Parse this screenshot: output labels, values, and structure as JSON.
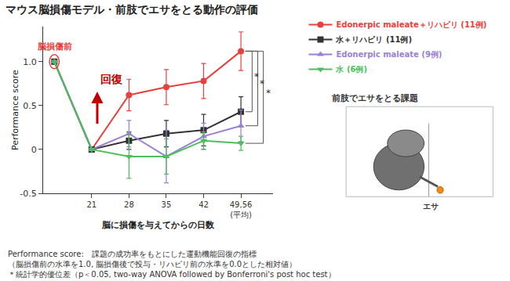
{
  "chart_data": {
    "type": "line",
    "title": "マウス脳損傷モデル・前肢でエサをとる動作の評価",
    "y_label": "Performance score",
    "x_label": "脳に損傷を与えてからの日数",
    "categories": [
      null,
      "21",
      "28",
      "35",
      "42",
      "49,56\n(平均)"
    ],
    "ylim": [
      -0.5,
      1.4
    ],
    "yticks": [
      -0.5,
      0,
      0.5,
      {
        "value": 1,
        "label": "1.0"
      }
    ],
    "grid": false,
    "legend": "right",
    "error_bars": true,
    "series": [
      {
        "name": "Edonerpic maleate＋リハビリ (11例)",
        "color": "#e8413c",
        "marker": "circle",
        "values": [
          1.0,
          0,
          0.62,
          0.71,
          0.78,
          1.12
        ],
        "errors": [
          0,
          0,
          0.18,
          0.2,
          0.2,
          0.22
        ]
      },
      {
        "name": "水＋リハビリ (11例)",
        "color": "#333333",
        "marker": "square",
        "values": [
          1.0,
          0,
          0.1,
          0.18,
          0.22,
          0.43
        ],
        "errors": [
          0,
          0,
          0.1,
          0.15,
          0.18,
          0.17
        ]
      },
      {
        "name": "Edonerpic maleate (9例)",
        "color": "#9b7fd4",
        "marker": "triangle-up",
        "values": [
          1.0,
          0,
          0.18,
          -0.08,
          0.15,
          0.27
        ],
        "errors": [
          0,
          0,
          0.15,
          0.3,
          0.15,
          0.18
        ]
      },
      {
        "name": "水 (6例)",
        "color": "#4dbf5a",
        "marker": "triangle-down",
        "values": [
          1.0,
          0,
          -0.08,
          -0.08,
          0.1,
          0.07
        ],
        "errors": [
          0,
          0,
          0.25,
          0.2,
          0.1,
          0.08
        ]
      }
    ],
    "significance": [
      {
        "series": [
          "Edonerpic maleate＋リハビリ (11例)",
          "水＋リハビリ (11例)"
        ],
        "label": "*"
      },
      {
        "series": [
          "Edonerpic maleate＋リハビリ (11例)",
          "Edonerpic maleate (9例)"
        ],
        "label": "*"
      },
      {
        "series": [
          "Edonerpic maleate＋リハビリ (11例)",
          "水 (6例)"
        ],
        "label": "*"
      }
    ],
    "pre_injury_label": "脳損傷前",
    "recovery_label": "回復",
    "task_title": "前肢でエサをとる課題",
    "food_label": "エサ",
    "notes": [
      "Performance score:　課題の成功率をもとにした運動機能回復の指標",
      "（脳損傷前の水準を1.0, 脳損傷後で投与・リハビリ前の水準を0.0とした相対値）",
      "＊統計学的優位差（p＜0.05, two-way ANOVA followed by Bonferroni's post hoc test）"
    ]
  }
}
